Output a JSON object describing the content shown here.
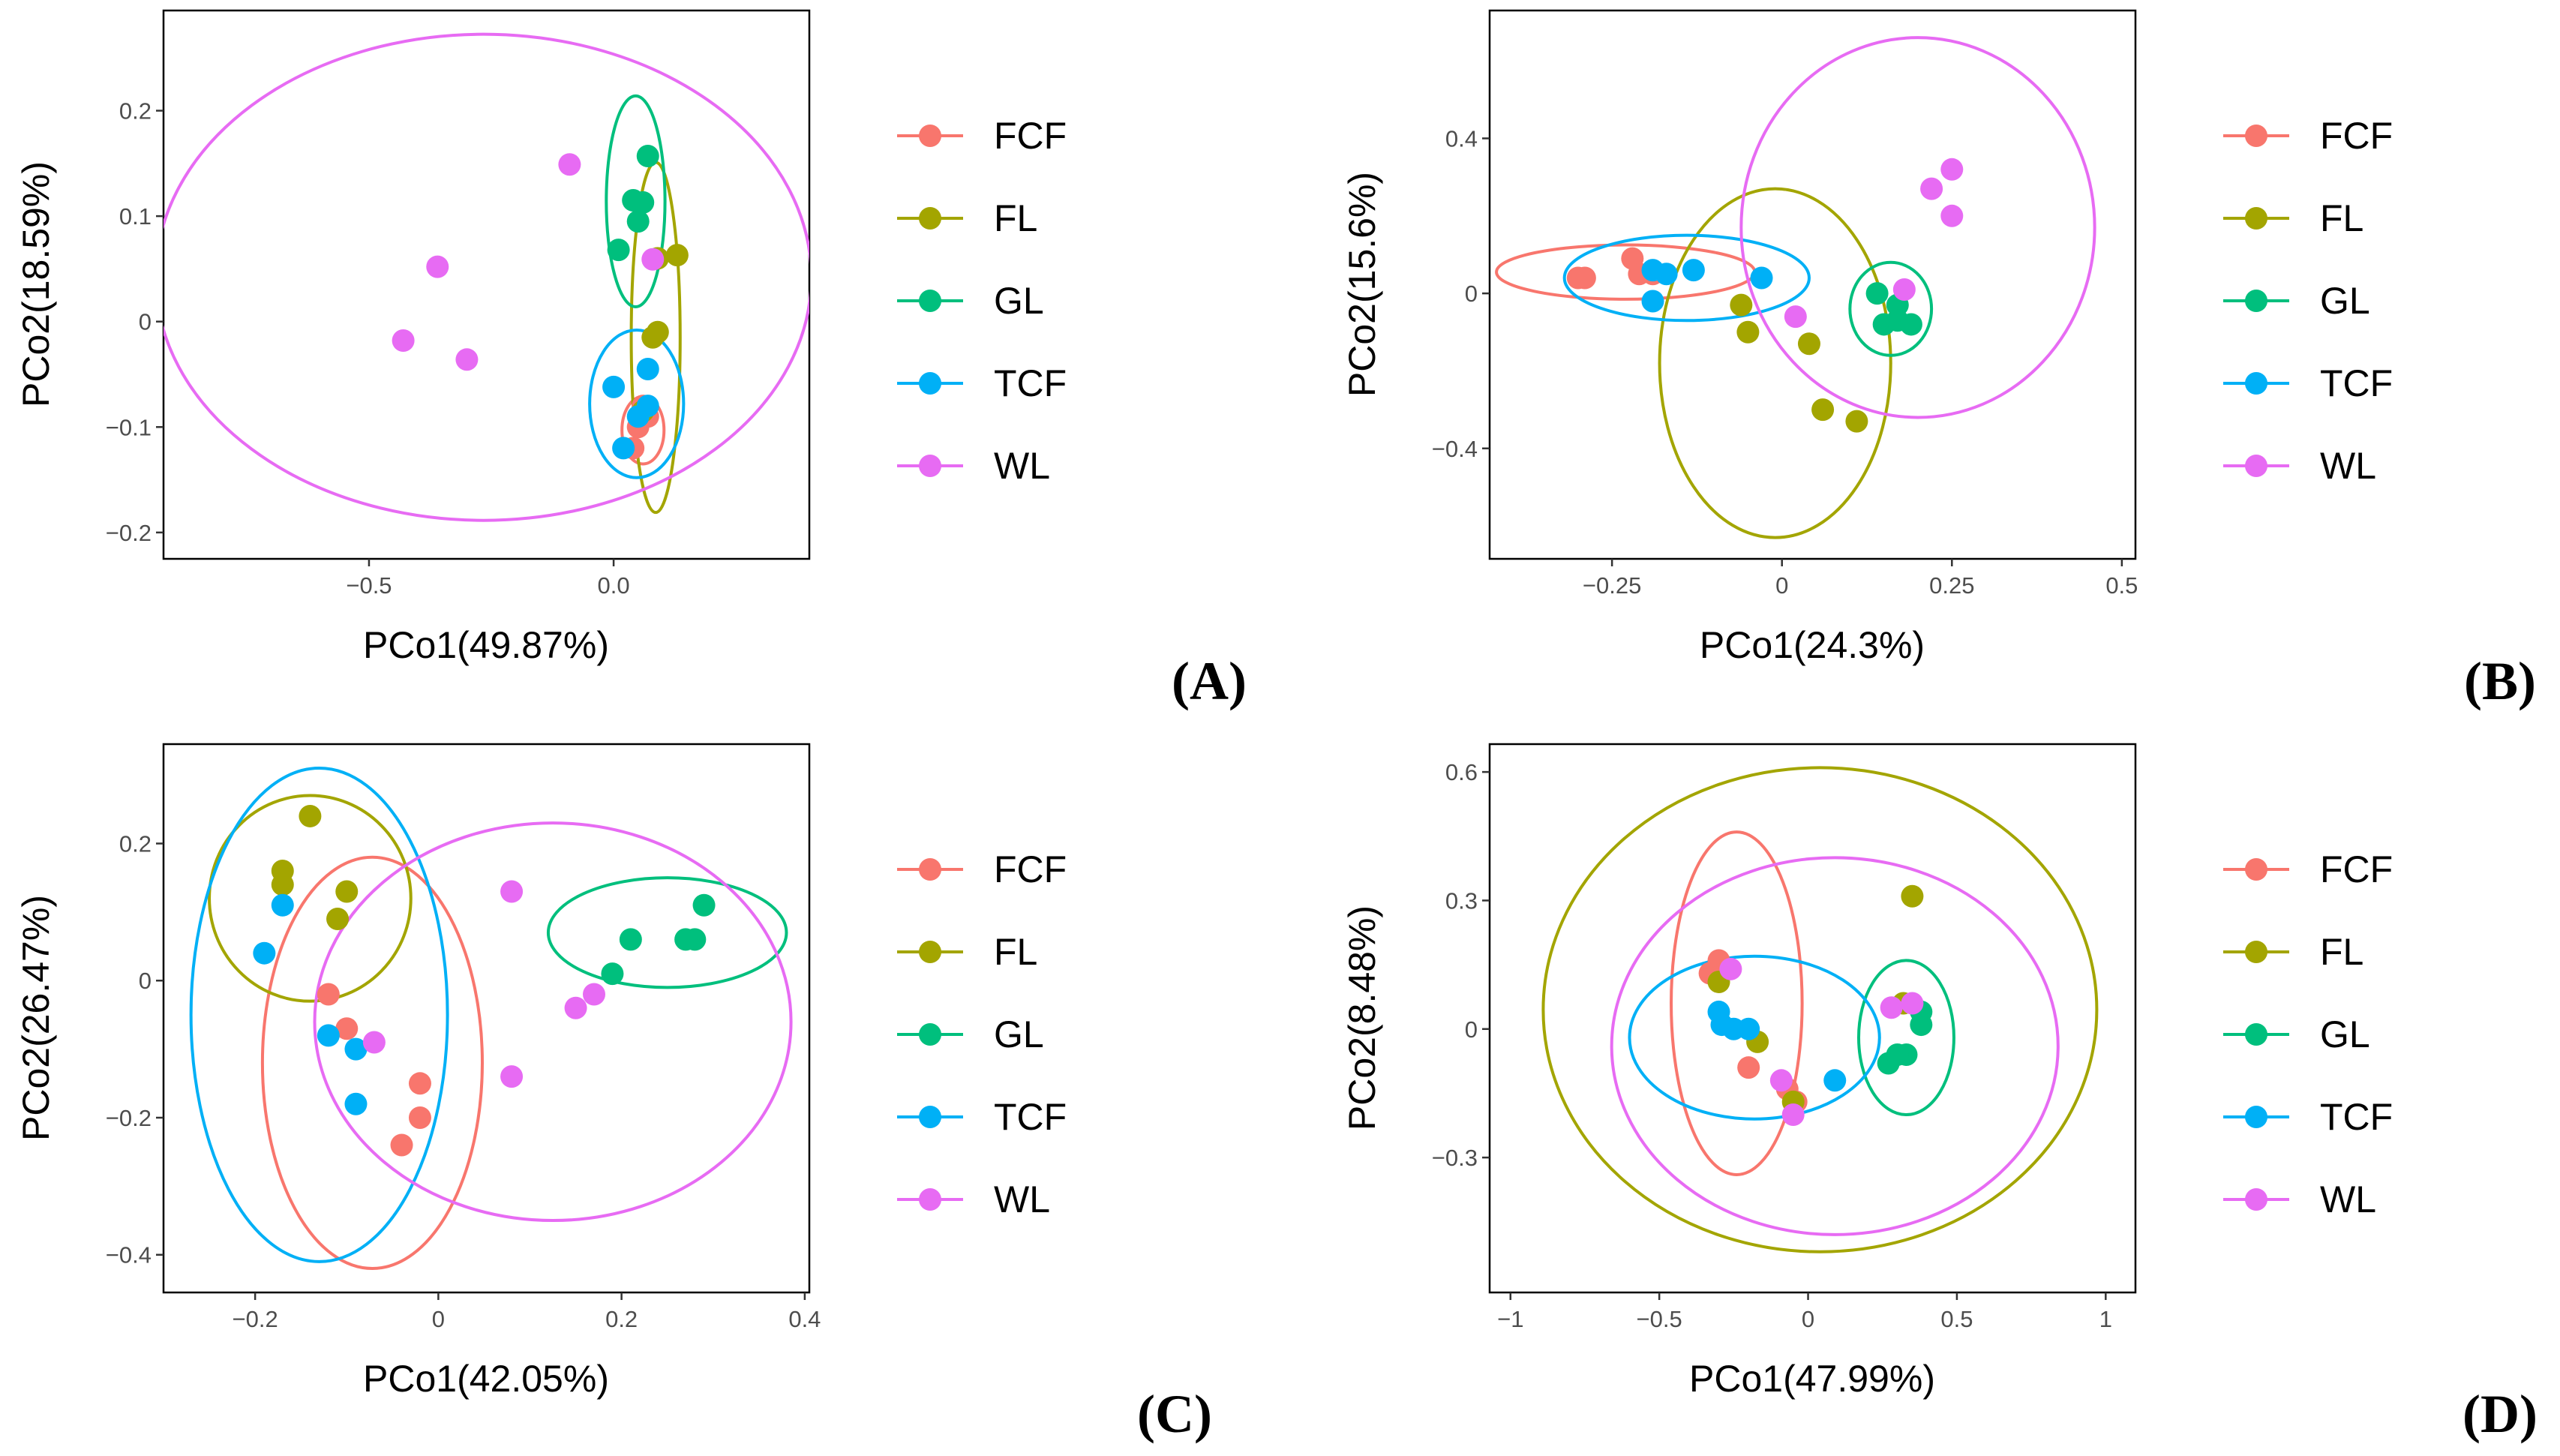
{
  "colors": {
    "FCF": "#F8766D",
    "FL": "#A3A500",
    "GL": "#00BF7D",
    "TCF": "#00B0F6",
    "WL": "#E76BF3"
  },
  "legend_labels": [
    "FCF",
    "FL",
    "GL",
    "TCF",
    "WL"
  ],
  "chart_data": [
    {
      "type": "scatter",
      "tag": "(A)",
      "xlabel": "PCo1(49.87%)",
      "ylabel": "PCo2(18.59%)",
      "xlim": [
        -0.92,
        0.4
      ],
      "ylim": [
        -0.225,
        0.295
      ],
      "xticks": [
        -0.5,
        0.0
      ],
      "xtick_labels": [
        "−0.5",
        "0.0"
      ],
      "yticks": [
        -0.2,
        -0.1,
        0.0,
        0.1,
        0.2
      ],
      "ytick_labels": [
        "−0.2",
        "−0.1",
        "0",
        "0.1",
        "0.2"
      ],
      "grid": false,
      "legend": "right",
      "series": [
        {
          "name": "FCF",
          "points": [
            [
              0.07,
              -0.09
            ],
            [
              0.04,
              -0.12
            ],
            [
              0.06,
              -0.08
            ],
            [
              0.05,
              -0.1
            ]
          ]
        },
        {
          "name": "FL",
          "points": [
            [
              0.13,
              0.063
            ],
            [
              0.09,
              0.06
            ],
            [
              0.09,
              -0.01
            ],
            [
              0.08,
              -0.015
            ],
            [
              0.06,
              -0.085
            ]
          ]
        },
        {
          "name": "GL",
          "points": [
            [
              0.07,
              0.157
            ],
            [
              0.04,
              0.115
            ],
            [
              0.01,
              0.068
            ],
            [
              0.05,
              0.095
            ],
            [
              0.06,
              0.113
            ]
          ]
        },
        {
          "name": "TCF",
          "points": [
            [
              0.07,
              -0.045
            ],
            [
              0.0,
              -0.062
            ],
            [
              0.02,
              -0.12
            ],
            [
              0.05,
              -0.09
            ],
            [
              0.07,
              -0.08
            ]
          ]
        },
        {
          "name": "WL",
          "points": [
            [
              -0.09,
              0.149
            ],
            [
              -0.36,
              0.052
            ],
            [
              -0.43,
              -0.018
            ],
            [
              -0.3,
              -0.036
            ],
            [
              0.08,
              0.059
            ]
          ]
        }
      ],
      "ellipses": [
        {
          "name": "FCF",
          "cx": 0.06,
          "cy": -0.103,
          "rx": 0.043,
          "ry": 0.032,
          "angle_deg": 0
        },
        {
          "name": "FL",
          "cx": 0.086,
          "cy": -0.015,
          "rx": 0.05,
          "ry": 0.166,
          "angle_deg": 0
        },
        {
          "name": "GL",
          "cx": 0.045,
          "cy": 0.114,
          "rx": 0.06,
          "ry": 0.1,
          "angle_deg": 0
        },
        {
          "name": "TCF",
          "cx": 0.047,
          "cy": -0.078,
          "rx": 0.096,
          "ry": 0.07,
          "angle_deg": 0
        },
        {
          "name": "WL",
          "cx": -0.266,
          "cy": 0.042,
          "rx": 0.67,
          "ry": 0.2305,
          "angle_deg": 0
        }
      ]
    },
    {
      "type": "scatter",
      "tag": "(B)",
      "xlabel": "PCo1(24.3%)",
      "ylabel": "PCo2(15.6%)",
      "xlim": [
        -0.43,
        0.52
      ],
      "ylim": [
        -0.685,
        0.73
      ],
      "xticks": [
        -0.25,
        0.0,
        0.25,
        0.5
      ],
      "xtick_labels": [
        "−0.25",
        "0",
        "0.25",
        "0.5"
      ],
      "yticks": [
        -0.4,
        0.0,
        0.4
      ],
      "ytick_labels": [
        "−0.4",
        "0",
        "0.4"
      ],
      "grid": false,
      "legend": "right",
      "series": [
        {
          "name": "FCF",
          "points": [
            [
              -0.3,
              0.04
            ],
            [
              -0.29,
              0.04
            ],
            [
              -0.22,
              0.09
            ],
            [
              -0.21,
              0.05
            ],
            [
              -0.19,
              0.05
            ]
          ]
        },
        {
          "name": "FL",
          "points": [
            [
              -0.06,
              -0.03
            ],
            [
              -0.05,
              -0.1
            ],
            [
              0.04,
              -0.13
            ],
            [
              0.06,
              -0.3
            ],
            [
              0.11,
              -0.33
            ]
          ]
        },
        {
          "name": "GL",
          "points": [
            [
              0.14,
              0.0
            ],
            [
              0.17,
              -0.03
            ],
            [
              0.15,
              -0.08
            ],
            [
              0.17,
              -0.07
            ],
            [
              0.19,
              -0.08
            ]
          ]
        },
        {
          "name": "TCF",
          "points": [
            [
              -0.19,
              0.06
            ],
            [
              -0.17,
              0.05
            ],
            [
              -0.13,
              0.06
            ],
            [
              -0.03,
              0.04
            ],
            [
              -0.19,
              -0.02
            ]
          ]
        },
        {
          "name": "WL",
          "points": [
            [
              0.02,
              -0.06
            ],
            [
              0.18,
              0.01
            ],
            [
              0.22,
              0.27
            ],
            [
              0.25,
              0.32
            ],
            [
              0.25,
              0.2
            ]
          ]
        }
      ],
      "ellipses": [
        {
          "name": "FCF",
          "cx": -0.23,
          "cy": 0.055,
          "rx": 0.19,
          "ry": 0.07,
          "angle_deg": 0
        },
        {
          "name": "FL",
          "cx": -0.01,
          "cy": -0.18,
          "rx": 0.17,
          "ry": 0.45,
          "angle_deg": 0
        },
        {
          "name": "GL",
          "cx": 0.16,
          "cy": -0.04,
          "rx": 0.06,
          "ry": 0.12,
          "angle_deg": 0
        },
        {
          "name": "TCF",
          "cx": -0.14,
          "cy": 0.04,
          "rx": 0.18,
          "ry": 0.11,
          "angle_deg": 0
        },
        {
          "name": "WL",
          "cx": 0.2,
          "cy": 0.17,
          "rx": 0.26,
          "ry": 0.49,
          "angle_deg": 0
        }
      ]
    },
    {
      "type": "scatter",
      "tag": "(C)",
      "xlabel": "PCo1(42.05%)",
      "ylabel": "PCo2(26.47%)",
      "xlim": [
        -0.3,
        0.405
      ],
      "ylim": [
        -0.455,
        0.345
      ],
      "xticks": [
        -0.2,
        0.0,
        0.2,
        0.4
      ],
      "xtick_labels": [
        "−0.2",
        "0",
        "0.2",
        "0.4"
      ],
      "yticks": [
        -0.4,
        -0.2,
        0.0,
        0.2
      ],
      "ytick_labels": [
        "−0.4",
        "−0.2",
        "0",
        "0.2"
      ],
      "grid": false,
      "legend": "right",
      "series": [
        {
          "name": "FCF",
          "points": [
            [
              -0.12,
              -0.02
            ],
            [
              -0.1,
              -0.07
            ],
            [
              -0.02,
              -0.15
            ],
            [
              -0.02,
              -0.2
            ],
            [
              -0.04,
              -0.24
            ]
          ]
        },
        {
          "name": "FL",
          "points": [
            [
              -0.14,
              0.24
            ],
            [
              -0.17,
              0.16
            ],
            [
              -0.17,
              0.14
            ],
            [
              -0.1,
              0.13
            ],
            [
              -0.11,
              0.09
            ]
          ]
        },
        {
          "name": "GL",
          "points": [
            [
              0.29,
              0.11
            ],
            [
              0.28,
              0.06
            ],
            [
              0.27,
              0.06
            ],
            [
              0.21,
              0.06
            ],
            [
              0.19,
              0.01
            ]
          ]
        },
        {
          "name": "TCF",
          "points": [
            [
              -0.17,
              0.11
            ],
            [
              -0.19,
              0.04
            ],
            [
              -0.12,
              -0.08
            ],
            [
              -0.09,
              -0.1
            ],
            [
              -0.09,
              -0.18
            ]
          ]
        },
        {
          "name": "WL",
          "points": [
            [
              0.08,
              0.13
            ],
            [
              0.17,
              -0.02
            ],
            [
              0.15,
              -0.04
            ],
            [
              -0.07,
              -0.09
            ],
            [
              0.08,
              -0.14
            ]
          ]
        }
      ],
      "ellipses": [
        {
          "name": "FCF",
          "cx": -0.072,
          "cy": -0.12,
          "rx": 0.12,
          "ry": 0.3,
          "angle_deg": 0
        },
        {
          "name": "FL",
          "cx": -0.14,
          "cy": 0.12,
          "rx": 0.11,
          "ry": 0.15,
          "angle_deg": 0
        },
        {
          "name": "GL",
          "cx": 0.25,
          "cy": 0.07,
          "rx": 0.13,
          "ry": 0.08,
          "angle_deg": 0
        },
        {
          "name": "TCF",
          "cx": -0.13,
          "cy": -0.05,
          "rx": 0.14,
          "ry": 0.36,
          "angle_deg": 0
        },
        {
          "name": "WL",
          "cx": 0.125,
          "cy": -0.06,
          "rx": 0.26,
          "ry": 0.29,
          "angle_deg": 0
        }
      ]
    },
    {
      "type": "scatter",
      "tag": "(D)",
      "xlabel": "PCo1(47.99%)",
      "ylabel": "PCo2(8.48%)",
      "xlim": [
        -1.07,
        1.1
      ],
      "ylim": [
        -0.615,
        0.665
      ],
      "xticks": [
        -1.0,
        -0.5,
        0.0,
        0.5,
        1.0
      ],
      "xtick_labels": [
        "−1",
        "−0.5",
        "0",
        "0.5",
        "1"
      ],
      "yticks": [
        -0.3,
        0.0,
        0.3,
        0.6
      ],
      "ytick_labels": [
        "−0.3",
        "0",
        "0.3",
        "0.6"
      ],
      "grid": false,
      "legend": "right",
      "series": [
        {
          "name": "FCF",
          "points": [
            [
              -0.33,
              0.13
            ],
            [
              -0.3,
              0.16
            ],
            [
              -0.2,
              -0.09
            ],
            [
              -0.07,
              -0.14
            ],
            [
              -0.04,
              -0.17
            ]
          ]
        },
        {
          "name": "FL",
          "points": [
            [
              0.35,
              0.31
            ],
            [
              0.32,
              0.06
            ],
            [
              -0.3,
              0.11
            ],
            [
              -0.17,
              -0.03
            ],
            [
              -0.05,
              -0.17
            ]
          ]
        },
        {
          "name": "GL",
          "points": [
            [
              0.38,
              0.04
            ],
            [
              0.38,
              0.01
            ],
            [
              0.33,
              -0.06
            ],
            [
              0.27,
              -0.08
            ],
            [
              0.3,
              -0.06
            ]
          ]
        },
        {
          "name": "TCF",
          "points": [
            [
              -0.3,
              0.04
            ],
            [
              -0.29,
              0.01
            ],
            [
              -0.25,
              0.0
            ],
            [
              -0.2,
              0.0
            ],
            [
              0.09,
              -0.12
            ]
          ]
        },
        {
          "name": "WL",
          "points": [
            [
              -0.26,
              0.14
            ],
            [
              0.28,
              0.05
            ],
            [
              0.35,
              0.06
            ],
            [
              -0.09,
              -0.12
            ],
            [
              -0.05,
              -0.2
            ]
          ]
        }
      ],
      "ellipses": [
        {
          "name": "FCF",
          "cx": -0.24,
          "cy": 0.06,
          "rx": 0.22,
          "ry": 0.4,
          "angle_deg": 0
        },
        {
          "name": "FL",
          "cx": 0.04,
          "cy": 0.045,
          "rx": 0.93,
          "ry": 0.565,
          "angle_deg": 0
        },
        {
          "name": "GL",
          "cx": 0.33,
          "cy": -0.02,
          "rx": 0.16,
          "ry": 0.18,
          "angle_deg": 0
        },
        {
          "name": "TCF",
          "cx": -0.18,
          "cy": -0.02,
          "rx": 0.42,
          "ry": 0.19,
          "angle_deg": 0
        },
        {
          "name": "WL",
          "cx": 0.09,
          "cy": -0.04,
          "rx": 0.75,
          "ry": 0.44,
          "angle_deg": 0
        }
      ]
    }
  ]
}
